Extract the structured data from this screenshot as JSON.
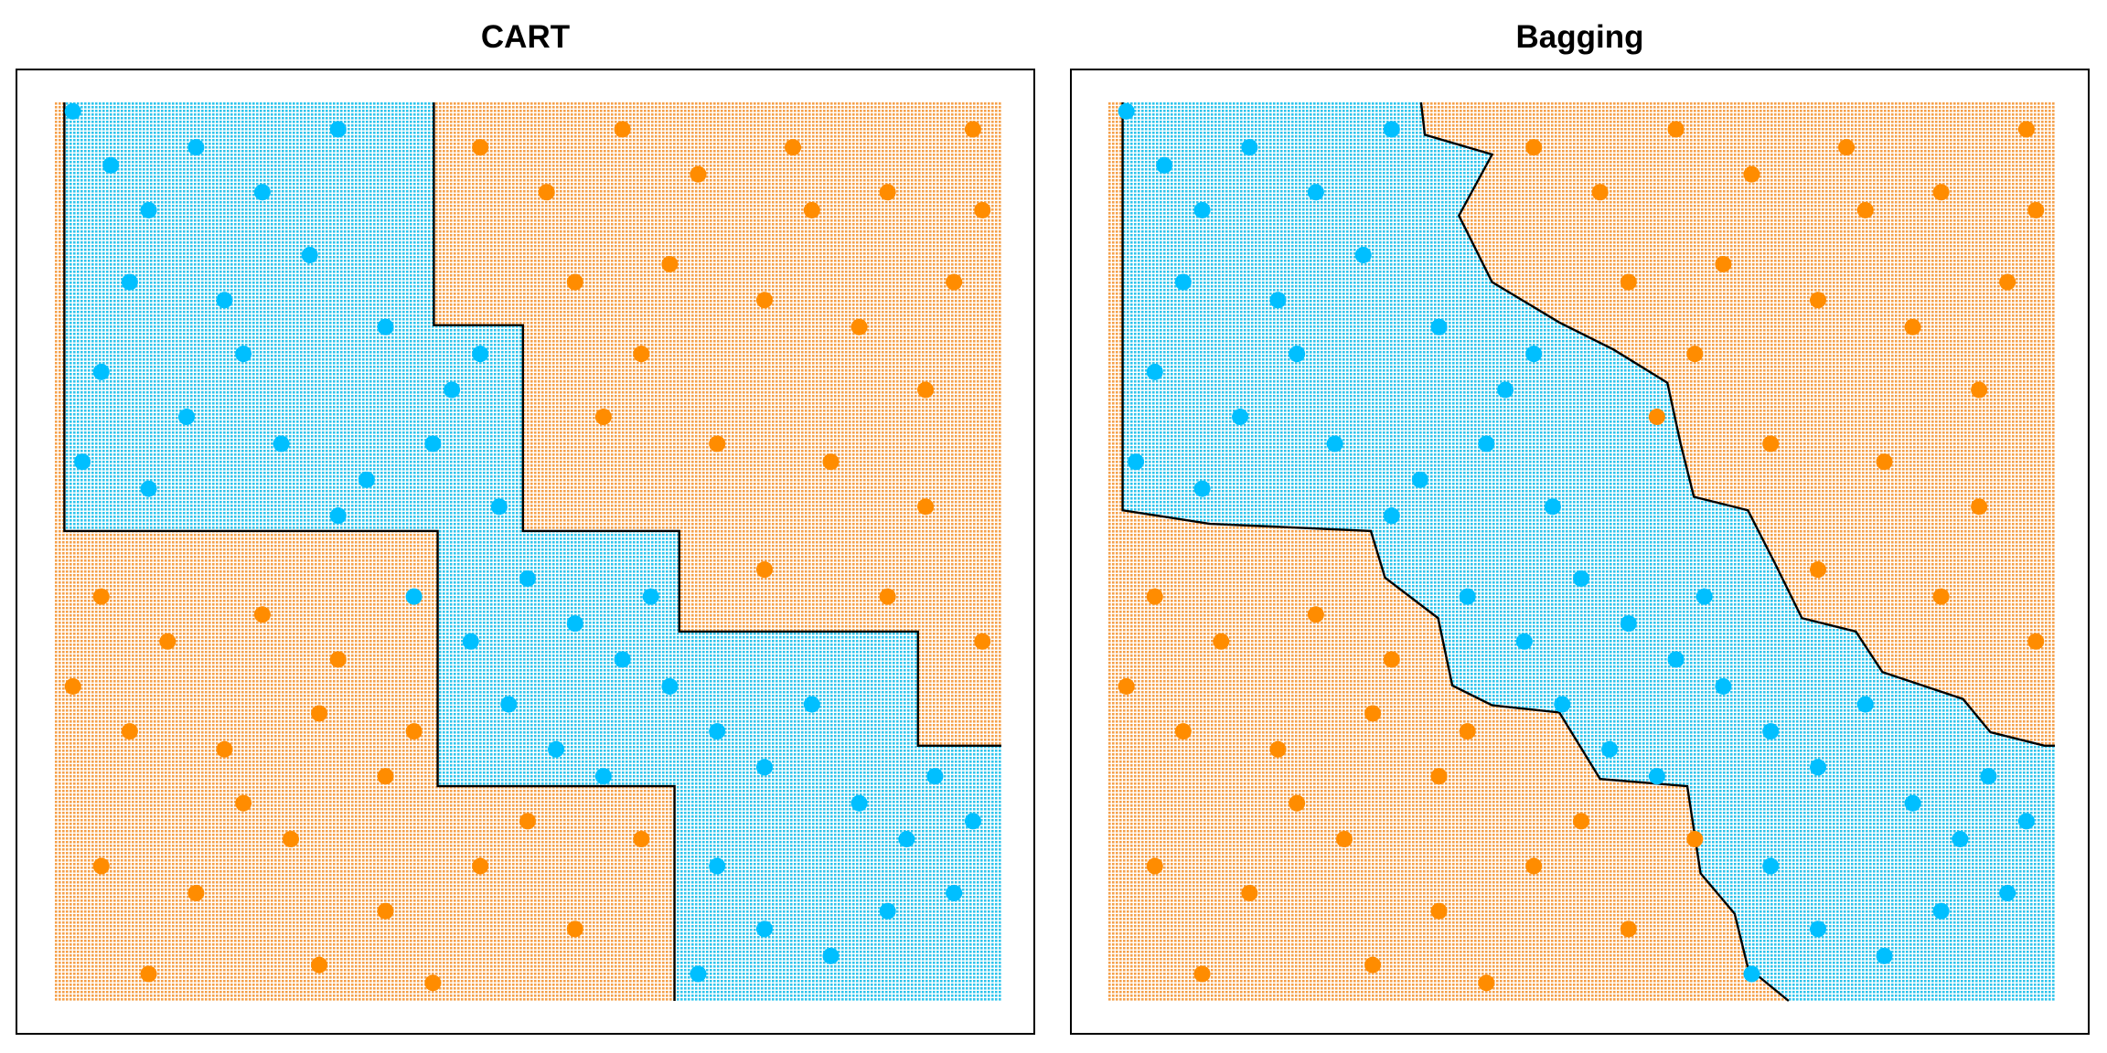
{
  "chart_data": [
    {
      "type": "scatter",
      "title": "CART",
      "xlim": [
        0,
        1
      ],
      "ylim": [
        0,
        1
      ],
      "region_colors": [
        "#f5a04a",
        "#2ec4ec"
      ],
      "series": [
        {
          "color": "#00bfff",
          "x": [
            0.02,
            0.06,
            0.1,
            0.15,
            0.22,
            0.3,
            0.08,
            0.18,
            0.27,
            0.35,
            0.05,
            0.14,
            0.24,
            0.33,
            0.42,
            0.45,
            0.1,
            0.3,
            0.4,
            0.47,
            0.5,
            0.55,
            0.6,
            0.44,
            0.48,
            0.53,
            0.58,
            0.65,
            0.7,
            0.75,
            0.8,
            0.85,
            0.9,
            0.95,
            0.7,
            0.75,
            0.82,
            0.68,
            0.93,
            0.88,
            0.63,
            0.38,
            0.2,
            0.03,
            0.97
          ],
          "values": [
            0.99,
            0.93,
            0.88,
            0.95,
            0.9,
            0.97,
            0.8,
            0.78,
            0.83,
            0.75,
            0.7,
            0.65,
            0.62,
            0.58,
            0.68,
            0.72,
            0.57,
            0.54,
            0.62,
            0.55,
            0.47,
            0.42,
            0.38,
            0.4,
            0.33,
            0.28,
            0.25,
            0.35,
            0.3,
            0.26,
            0.33,
            0.22,
            0.18,
            0.12,
            0.15,
            0.08,
            0.05,
            0.03,
            0.25,
            0.1,
            0.45,
            0.45,
            0.72,
            0.6,
            0.2
          ]
        },
        {
          "color": "#ff8c00",
          "x": [
            0.45,
            0.52,
            0.6,
            0.68,
            0.78,
            0.88,
            0.97,
            0.55,
            0.65,
            0.75,
            0.85,
            0.95,
            0.58,
            0.7,
            0.82,
            0.92,
            0.75,
            0.88,
            0.98,
            0.05,
            0.12,
            0.22,
            0.3,
            0.08,
            0.18,
            0.28,
            0.35,
            0.05,
            0.15,
            0.25,
            0.35,
            0.45,
            0.55,
            0.62,
            0.1,
            0.28,
            0.4,
            0.2,
            0.5,
            0.92,
            0.62,
            0.02,
            0.98,
            0.38,
            0.8
          ],
          "values": [
            0.95,
            0.9,
            0.97,
            0.92,
            0.95,
            0.9,
            0.97,
            0.8,
            0.82,
            0.78,
            0.75,
            0.8,
            0.65,
            0.62,
            0.6,
            0.55,
            0.48,
            0.45,
            0.4,
            0.45,
            0.4,
            0.43,
            0.38,
            0.3,
            0.28,
            0.32,
            0.25,
            0.15,
            0.12,
            0.18,
            0.1,
            0.15,
            0.08,
            0.18,
            0.03,
            0.04,
            0.02,
            0.22,
            0.2,
            0.68,
            0.72,
            0.35,
            0.88,
            0.3,
            0.88
          ]
        }
      ],
      "boundaries": [
        {
          "x": [
            0.401,
            0.401,
            0.495,
            0.495,
            0.66,
            0.66,
            0.912,
            0.912,
            1
          ],
          "values": [
            1,
            0.752,
            0.752,
            0.523,
            0.523,
            0.411,
            0.411,
            0.284,
            0.284
          ]
        },
        {
          "x": [
            0.011,
            0.011,
            0.405,
            0.405,
            0.655,
            0.655
          ],
          "values": [
            1,
            0.523,
            0.523,
            0.239,
            0.239,
            0
          ]
        }
      ]
    },
    {
      "type": "scatter",
      "title": "Bagging",
      "xlim": [
        0,
        1
      ],
      "ylim": [
        0,
        1
      ],
      "region_colors": [
        "#f5a04a",
        "#2ec4ec"
      ],
      "series": [
        {
          "color": "#00bfff",
          "x": [
            0.02,
            0.06,
            0.1,
            0.15,
            0.22,
            0.3,
            0.08,
            0.18,
            0.27,
            0.35,
            0.05,
            0.14,
            0.24,
            0.33,
            0.42,
            0.45,
            0.1,
            0.3,
            0.4,
            0.47,
            0.5,
            0.55,
            0.6,
            0.44,
            0.48,
            0.53,
            0.58,
            0.65,
            0.7,
            0.75,
            0.8,
            0.85,
            0.9,
            0.95,
            0.7,
            0.75,
            0.82,
            0.68,
            0.93,
            0.88,
            0.63,
            0.38,
            0.2,
            0.03,
            0.97
          ],
          "values": [
            0.99,
            0.93,
            0.88,
            0.95,
            0.9,
            0.97,
            0.8,
            0.78,
            0.83,
            0.75,
            0.7,
            0.65,
            0.62,
            0.58,
            0.68,
            0.72,
            0.57,
            0.54,
            0.62,
            0.55,
            0.47,
            0.42,
            0.38,
            0.4,
            0.33,
            0.28,
            0.25,
            0.35,
            0.3,
            0.26,
            0.33,
            0.22,
            0.18,
            0.12,
            0.15,
            0.08,
            0.05,
            0.03,
            0.25,
            0.1,
            0.45,
            0.45,
            0.72,
            0.6,
            0.2
          ]
        },
        {
          "color": "#ff8c00",
          "x": [
            0.45,
            0.52,
            0.6,
            0.68,
            0.78,
            0.88,
            0.97,
            0.55,
            0.65,
            0.75,
            0.85,
            0.95,
            0.58,
            0.7,
            0.82,
            0.92,
            0.75,
            0.88,
            0.98,
            0.05,
            0.12,
            0.22,
            0.3,
            0.08,
            0.18,
            0.28,
            0.35,
            0.05,
            0.15,
            0.25,
            0.35,
            0.45,
            0.55,
            0.62,
            0.1,
            0.28,
            0.4,
            0.2,
            0.5,
            0.92,
            0.62,
            0.02,
            0.98,
            0.38,
            0.8
          ],
          "values": [
            0.95,
            0.9,
            0.97,
            0.92,
            0.95,
            0.9,
            0.97,
            0.8,
            0.82,
            0.78,
            0.75,
            0.8,
            0.65,
            0.62,
            0.6,
            0.55,
            0.48,
            0.45,
            0.4,
            0.45,
            0.4,
            0.43,
            0.38,
            0.3,
            0.28,
            0.32,
            0.25,
            0.15,
            0.12,
            0.18,
            0.1,
            0.15,
            0.08,
            0.18,
            0.03,
            0.04,
            0.02,
            0.22,
            0.2,
            0.68,
            0.72,
            0.35,
            0.88,
            0.3,
            0.88
          ]
        }
      ],
      "boundaries": [
        {
          "x": [
            0.331,
            0.335,
            0.406,
            0.371,
            0.406,
            0.477,
            0.534,
            0.591,
            0.605,
            0.619,
            0.676,
            0.705,
            0.733,
            0.79,
            0.818,
            0.903,
            0.932,
            0.989,
            1
          ],
          "values": [
            1,
            0.964,
            0.942,
            0.874,
            0.8,
            0.755,
            0.725,
            0.688,
            0.62,
            0.561,
            0.546,
            0.486,
            0.426,
            0.411,
            0.366,
            0.336,
            0.299,
            0.284,
            0.284
          ]
        },
        {
          "x": [
            0.016,
            0.016,
            0.108,
            0.278,
            0.293,
            0.349,
            0.364,
            0.406,
            0.477,
            0.52,
            0.612,
            0.626,
            0.662,
            0.676,
            0.719
          ],
          "values": [
            1,
            0.546,
            0.531,
            0.523,
            0.471,
            0.426,
            0.351,
            0.329,
            0.321,
            0.247,
            0.239,
            0.142,
            0.097,
            0.037,
            0
          ]
        }
      ]
    }
  ]
}
